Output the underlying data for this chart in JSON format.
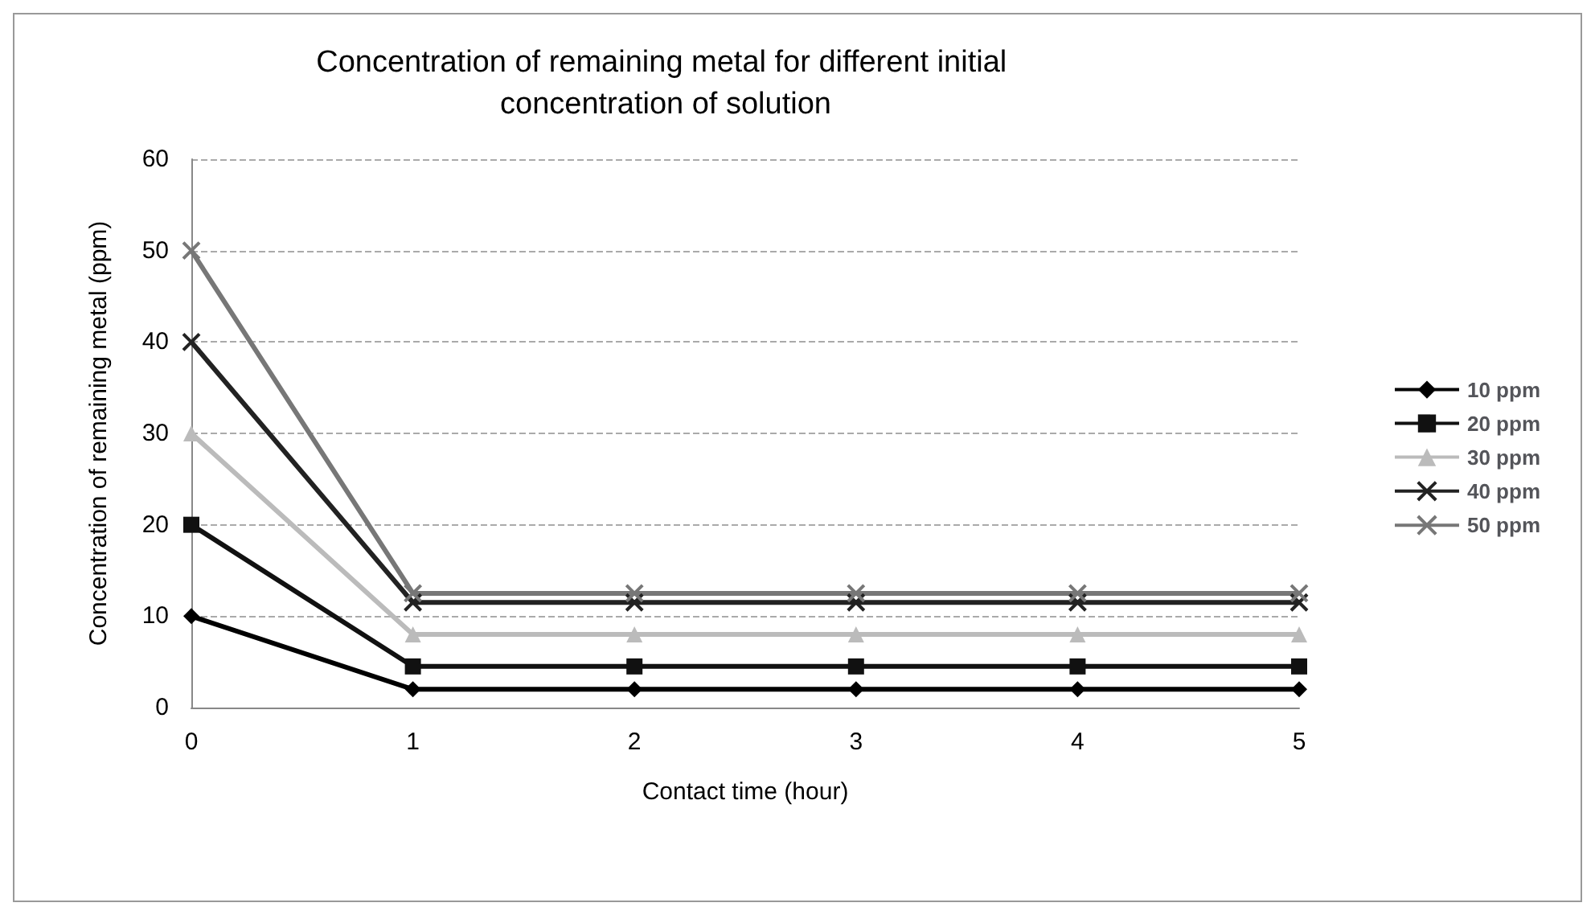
{
  "chart_data": {
    "type": "line",
    "title": "Concentration of remaining metal for different initial concentration of solution",
    "xlabel": "Contact time (hour)",
    "ylabel": "Concentration of remaining metal (ppm)",
    "categories": [
      "0",
      "1",
      "2",
      "3",
      "4",
      "5"
    ],
    "ylim": [
      0,
      60
    ],
    "yticks": [
      0,
      10,
      20,
      30,
      40,
      50,
      60
    ],
    "grid": "y",
    "legend": "right",
    "series": [
      {
        "name": "10 ppm",
        "color": "#000000",
        "marker": "diamond",
        "values": [
          10,
          2,
          2,
          2,
          2,
          2
        ]
      },
      {
        "name": "20 ppm",
        "color": "#111111",
        "marker": "square",
        "values": [
          20,
          4.5,
          4.5,
          4.5,
          4.5,
          4.5
        ]
      },
      {
        "name": "30 ppm",
        "color": "#bbbbbb",
        "marker": "triangle",
        "values": [
          30,
          8,
          8,
          8,
          8,
          8
        ]
      },
      {
        "name": "40 ppm",
        "color": "#222222",
        "marker": "cross",
        "values": [
          40,
          11.5,
          11.5,
          11.5,
          11.5,
          11.5
        ]
      },
      {
        "name": "50 ppm",
        "color": "#777777",
        "marker": "cross",
        "values": [
          50,
          12.5,
          12.5,
          12.5,
          12.5,
          12.5
        ]
      }
    ]
  }
}
